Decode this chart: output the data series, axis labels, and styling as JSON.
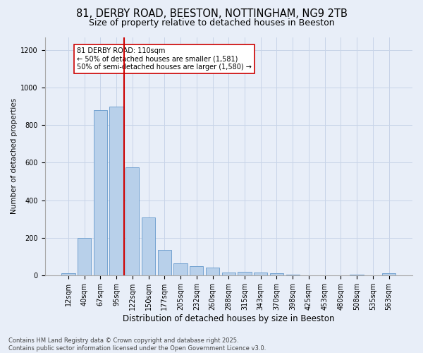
{
  "title": "81, DERBY ROAD, BEESTON, NOTTINGHAM, NG9 2TB",
  "subtitle": "Size of property relative to detached houses in Beeston",
  "xlabel": "Distribution of detached houses by size in Beeston",
  "ylabel": "Number of detached properties",
  "categories": [
    "12sqm",
    "40sqm",
    "67sqm",
    "95sqm",
    "122sqm",
    "150sqm",
    "177sqm",
    "205sqm",
    "232sqm",
    "260sqm",
    "288sqm",
    "315sqm",
    "343sqm",
    "370sqm",
    "398sqm",
    "425sqm",
    "453sqm",
    "480sqm",
    "508sqm",
    "535sqm",
    "563sqm"
  ],
  "values": [
    10,
    200,
    880,
    900,
    575,
    310,
    135,
    65,
    50,
    42,
    13,
    18,
    16,
    12,
    5,
    1,
    0,
    0,
    5,
    0,
    10
  ],
  "bar_color": "#b8d0ea",
  "bar_edge_color": "#6699cc",
  "vline_color": "#cc0000",
  "annotation_text": "81 DERBY ROAD: 110sqm\n← 50% of detached houses are smaller (1,581)\n50% of semi-detached houses are larger (1,580) →",
  "annotation_box_color": "#ffffff",
  "annotation_box_edge": "#cc0000",
  "ylim": [
    0,
    1270
  ],
  "yticks": [
    0,
    200,
    400,
    600,
    800,
    1000,
    1200
  ],
  "grid_color": "#c8d4e8",
  "bg_color": "#e8eef8",
  "footer": "Contains HM Land Registry data © Crown copyright and database right 2025.\nContains public sector information licensed under the Open Government Licence v3.0.",
  "title_fontsize": 10.5,
  "subtitle_fontsize": 9,
  "xlabel_fontsize": 8.5,
  "ylabel_fontsize": 7.5,
  "tick_fontsize": 7,
  "annotation_fontsize": 7,
  "footer_fontsize": 6
}
